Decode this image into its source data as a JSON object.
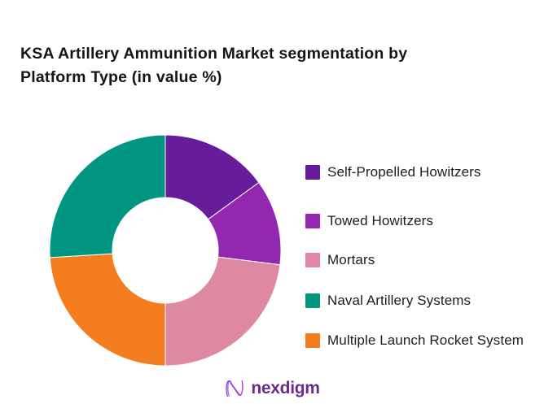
{
  "header": {
    "line1": "KSA Artillery Ammunition Market segmentation by",
    "line2": "Platform Type (in value %)"
  },
  "chart_data": {
    "type": "pie",
    "subtype": "donut",
    "title": "KSA Artillery Ammunition Market segmentation by Platform Type (in value %)",
    "unit": "% of market value",
    "start_angle_deg": 0,
    "direction": "clockwise",
    "clockwise_order": [
      0,
      1,
      2,
      4,
      3
    ],
    "inner_radius_ratio": 0.455,
    "legend_position": "right",
    "data_labels_shown": false,
    "segments": [
      {
        "label": "Self-Propelled Howitzers",
        "value": 15,
        "color": "#671C9C"
      },
      {
        "label": "Towed Howitzers",
        "value": 12,
        "color": "#9227B0"
      },
      {
        "label": "Mortars",
        "value": 23,
        "color": "#DE88A2"
      },
      {
        "label": "Naval Artillery Systems",
        "value": 26,
        "color": "#009682"
      },
      {
        "label": "Multiple Launch Rocket System",
        "value": 24,
        "color": "#F47D20"
      }
    ]
  },
  "footer": {
    "logo_text": "nexdigm",
    "logo_text_color": "#6A2B8F",
    "logo_mark_gradient": [
      "#7C3AED",
      "#C026D3"
    ]
  }
}
